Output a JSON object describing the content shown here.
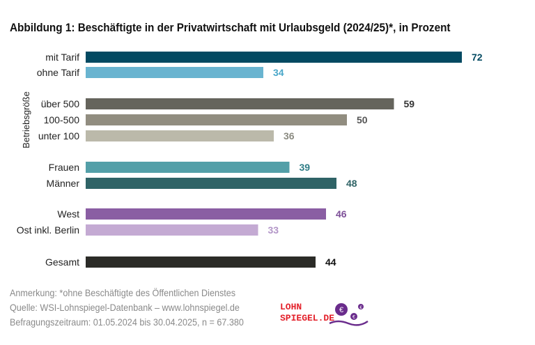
{
  "title": "Abbildung 1:  Beschäftigte in der Privatwirtschaft mit Urlaubsgeld (2024/25)*, in Prozent",
  "chart_data": {
    "type": "bar",
    "orientation": "horizontal",
    "categories": [
      "mit Tarif",
      "ohne Tarif",
      "über 500",
      "100-500",
      "unter 100",
      "Frauen",
      "Männer",
      "West",
      "Ost inkl. Berlin",
      "Gesamt"
    ],
    "values": [
      72,
      34,
      59,
      50,
      36,
      39,
      48,
      46,
      33,
      44
    ],
    "colors": [
      "#034a62",
      "#69b4d0",
      "#65645c",
      "#918d80",
      "#bbb9aa",
      "#539fa8",
      "#2f6366",
      "#8a5ea3",
      "#c4aad3",
      "#2b2b27"
    ],
    "label_colors": [
      "#034a62",
      "#4aa7c9",
      "#333333",
      "#555555",
      "#8a8a80",
      "#2f7d86",
      "#2f6366",
      "#7d4f98",
      "#b295c7",
      "#111111"
    ],
    "group_label": "Betriebsgröße",
    "xlim": [
      0,
      72
    ],
    "grid": false
  },
  "notes": [
    "Anmerkung: *ohne Beschäftigte des Öffentlichen Dienstes",
    "Quelle:  WSI-Lohnspiegel-Datenbank – www.lohnspiegel.de",
    "Befragungszeitraum: 01.05.2024 bis 30.04.2025, n = 67.380"
  ],
  "logo": {
    "line1": "LOHN",
    "line2": "SPIEGEL.DE",
    "color": "#e3202a",
    "accent": "#6a2c8c"
  }
}
